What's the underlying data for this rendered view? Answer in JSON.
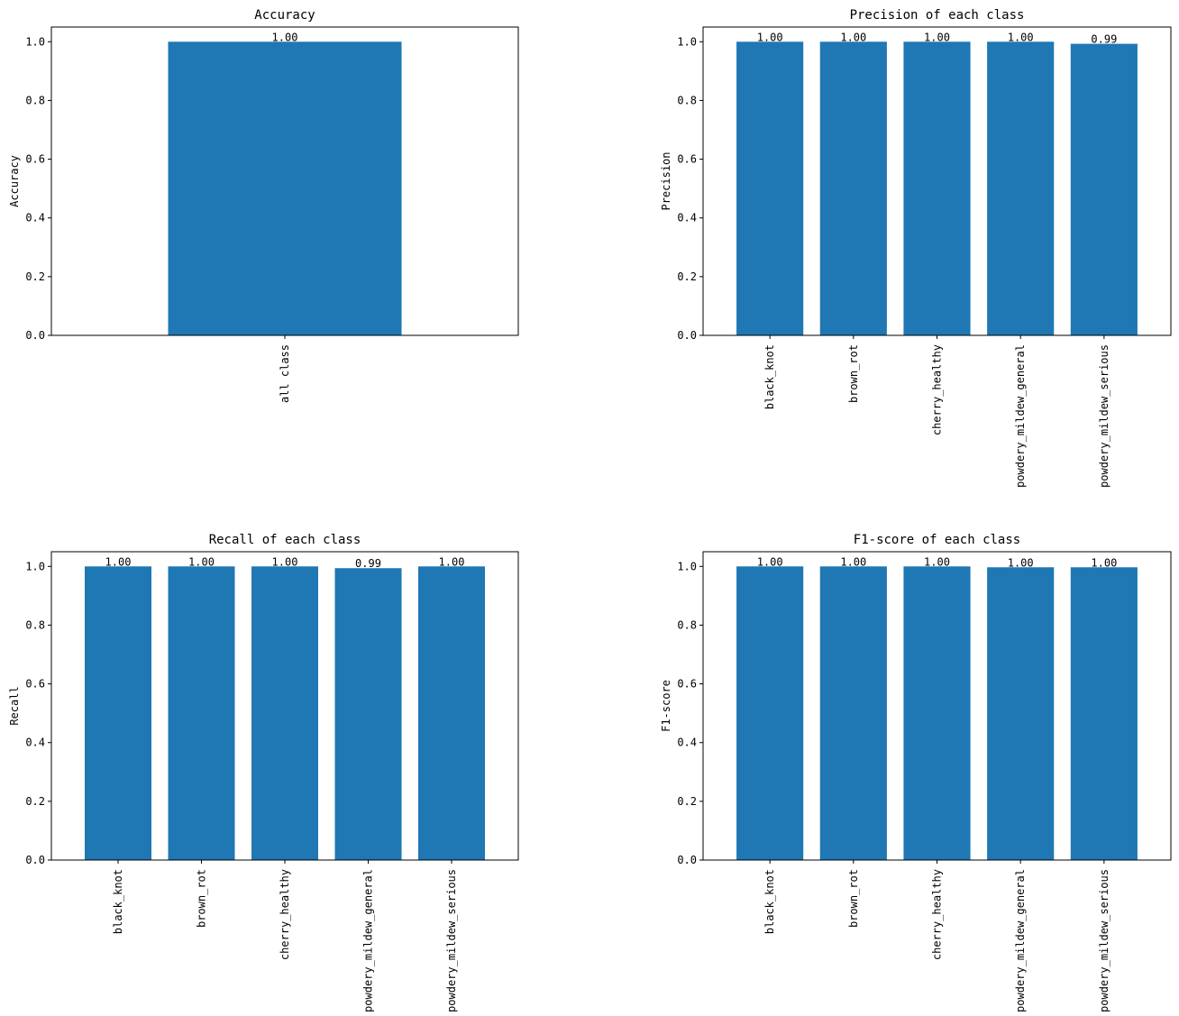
{
  "chart_data": [
    {
      "type": "bar",
      "title": "Accuracy",
      "xlabel": "",
      "ylabel": "Accuracy",
      "categories": [
        "all class"
      ],
      "values": [
        1.0
      ],
      "value_labels": [
        "1.00"
      ],
      "ylim": [
        0,
        1.05
      ],
      "yticks": [
        "0.0",
        "0.2",
        "0.4",
        "0.6",
        "0.8",
        "1.0"
      ],
      "grid": false,
      "color": "#1f77b4"
    },
    {
      "type": "bar",
      "title": "Precision of each class",
      "xlabel": "",
      "ylabel": "Precision",
      "categories": [
        "black_knot",
        "brown_rot",
        "cherry_healthy",
        "powdery_mildew_general",
        "powdery_mildew_serious"
      ],
      "values": [
        1.0,
        1.0,
        1.0,
        1.0,
        0.993
      ],
      "value_labels": [
        "1.00",
        "1.00",
        "1.00",
        "1.00",
        "0.99"
      ],
      "ylim": [
        0,
        1.05
      ],
      "yticks": [
        "0.0",
        "0.2",
        "0.4",
        "0.6",
        "0.8",
        "1.0"
      ],
      "grid": false,
      "color": "#1f77b4"
    },
    {
      "type": "bar",
      "title": "Recall of each class",
      "xlabel": "",
      "ylabel": "Recall",
      "categories": [
        "black_knot",
        "brown_rot",
        "cherry_healthy",
        "powdery_mildew_general",
        "powdery_mildew_serious"
      ],
      "values": [
        1.0,
        1.0,
        1.0,
        0.994,
        1.0
      ],
      "value_labels": [
        "1.00",
        "1.00",
        "1.00",
        "0.99",
        "1.00"
      ],
      "ylim": [
        0,
        1.05
      ],
      "yticks": [
        "0.0",
        "0.2",
        "0.4",
        "0.6",
        "0.8",
        "1.0"
      ],
      "grid": false,
      "color": "#1f77b4"
    },
    {
      "type": "bar",
      "title": "F1-score of each class",
      "xlabel": "",
      "ylabel": "F1-score",
      "categories": [
        "black_knot",
        "brown_rot",
        "cherry_healthy",
        "powdery_mildew_general",
        "powdery_mildew_serious"
      ],
      "values": [
        1.0,
        1.0,
        1.0,
        0.997,
        0.997
      ],
      "value_labels": [
        "1.00",
        "1.00",
        "1.00",
        "1.00",
        "1.00"
      ],
      "ylim": [
        0,
        1.05
      ],
      "yticks": [
        "0.0",
        "0.2",
        "0.4",
        "0.6",
        "0.8",
        "1.0"
      ],
      "grid": false,
      "color": "#1f77b4"
    }
  ]
}
